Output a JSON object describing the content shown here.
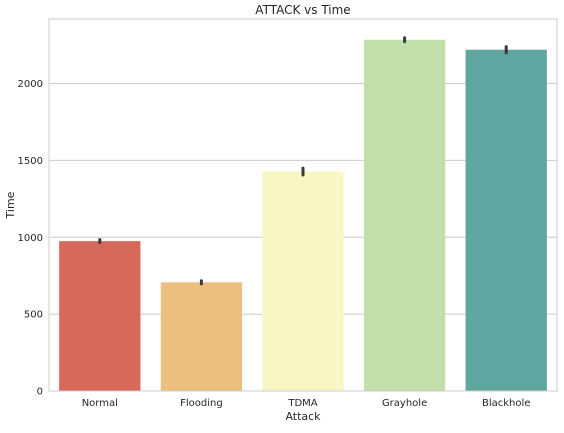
{
  "chart_data": {
    "type": "bar",
    "title": "ATTACK vs Time",
    "xlabel": "Attack",
    "ylabel": "Time",
    "categories": [
      "Normal",
      "Flooding",
      "TDMA",
      "Grayhole",
      "Blackhole"
    ],
    "values": [
      975,
      707,
      1428,
      2285,
      2220
    ],
    "error_bars": [
      {
        "low": 965,
        "high": 985
      },
      {
        "low": 697,
        "high": 717
      },
      {
        "low": 1405,
        "high": 1450
      },
      {
        "low": 2272,
        "high": 2298
      },
      {
        "low": 2200,
        "high": 2240
      }
    ],
    "bar_colors": [
      "#d7695b",
      "#ecbf80",
      "#f8f7c3",
      "#c2deaa",
      "#5fa5a0"
    ],
    "error_bar_color": "#3a3a3a",
    "ylim": [
      0,
      2420
    ],
    "yticks": [
      0,
      500,
      1000,
      1500,
      2000
    ],
    "ytick_labels": [
      "0",
      "500",
      "1000",
      "1500",
      "2000"
    ],
    "grid": "horizontal",
    "legend": "none"
  }
}
